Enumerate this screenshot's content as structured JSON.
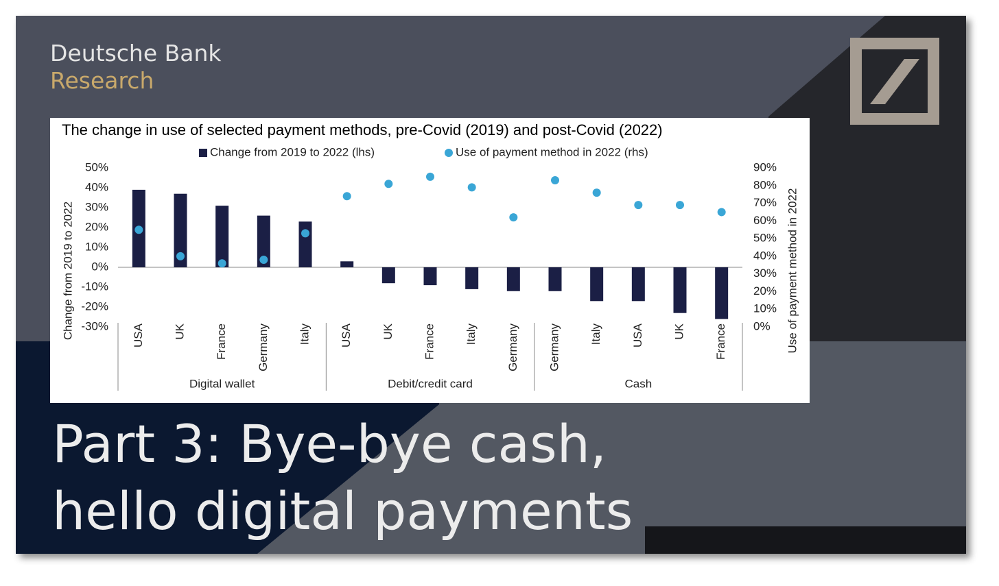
{
  "brand": {
    "name": "Deutsche Bank",
    "unit": "Research"
  },
  "headline": [
    "Part 3: Bye-bye cash,",
    "hello digital payments"
  ],
  "chart_data": {
    "type": "bar",
    "title": "The change in use of selected payment methods, pre-Covid (2019) and post-Covid (2022)",
    "categories": [
      "USA",
      "UK",
      "France",
      "Germany",
      "Italy",
      "USA",
      "UK",
      "France",
      "Italy",
      "Germany",
      "Germany",
      "Italy",
      "USA",
      "UK",
      "France"
    ],
    "category_groups": [
      "Digital wallet",
      "Debit/credit card",
      "Cash"
    ],
    "series": [
      {
        "name": "Change from 2019 to 2022 (lhs)",
        "type": "bar",
        "color": "#1b1f45",
        "values": [
          39,
          37,
          31,
          26,
          23,
          3,
          -8,
          -9,
          -11,
          -12,
          -12,
          -17,
          -17,
          -23,
          -26
        ]
      },
      {
        "name": "Use of payment method in 2022 (rhs)",
        "type": "scatter",
        "axis": "y2",
        "color": "#3aa6d6",
        "values": [
          55,
          40,
          36,
          38,
          53,
          74,
          81,
          85,
          79,
          62,
          83,
          76,
          69,
          69,
          65
        ]
      }
    ],
    "ylabel": "Change from 2019 to 2022",
    "y2label": "Use of payment method in 2022",
    "ylim": [
      -30,
      50
    ],
    "yticks": [
      {
        "value": 50,
        "label": "50%"
      },
      {
        "value": 40,
        "label": "40%"
      },
      {
        "value": 30,
        "label": "30%"
      },
      {
        "value": 20,
        "label": "20%"
      },
      {
        "value": 10,
        "label": "10%"
      },
      {
        "value": 0,
        "label": "0%"
      },
      {
        "value": -10,
        "label": "-10%"
      },
      {
        "value": -20,
        "label": "-20%"
      },
      {
        "value": -30,
        "label": "-30%"
      }
    ],
    "y2lim": [
      0,
      90
    ],
    "y2ticks": [
      {
        "value": 90,
        "label": "90%"
      },
      {
        "value": 80,
        "label": "80%"
      },
      {
        "value": 70,
        "label": "70%"
      },
      {
        "value": 60,
        "label": "60%"
      },
      {
        "value": 50,
        "label": "50%"
      },
      {
        "value": 40,
        "label": "40%"
      },
      {
        "value": 30,
        "label": "30%"
      },
      {
        "value": 20,
        "label": "20%"
      },
      {
        "value": 10,
        "label": "10%"
      },
      {
        "value": 0,
        "label": "0%"
      }
    ],
    "grid": false,
    "legend": "top"
  }
}
